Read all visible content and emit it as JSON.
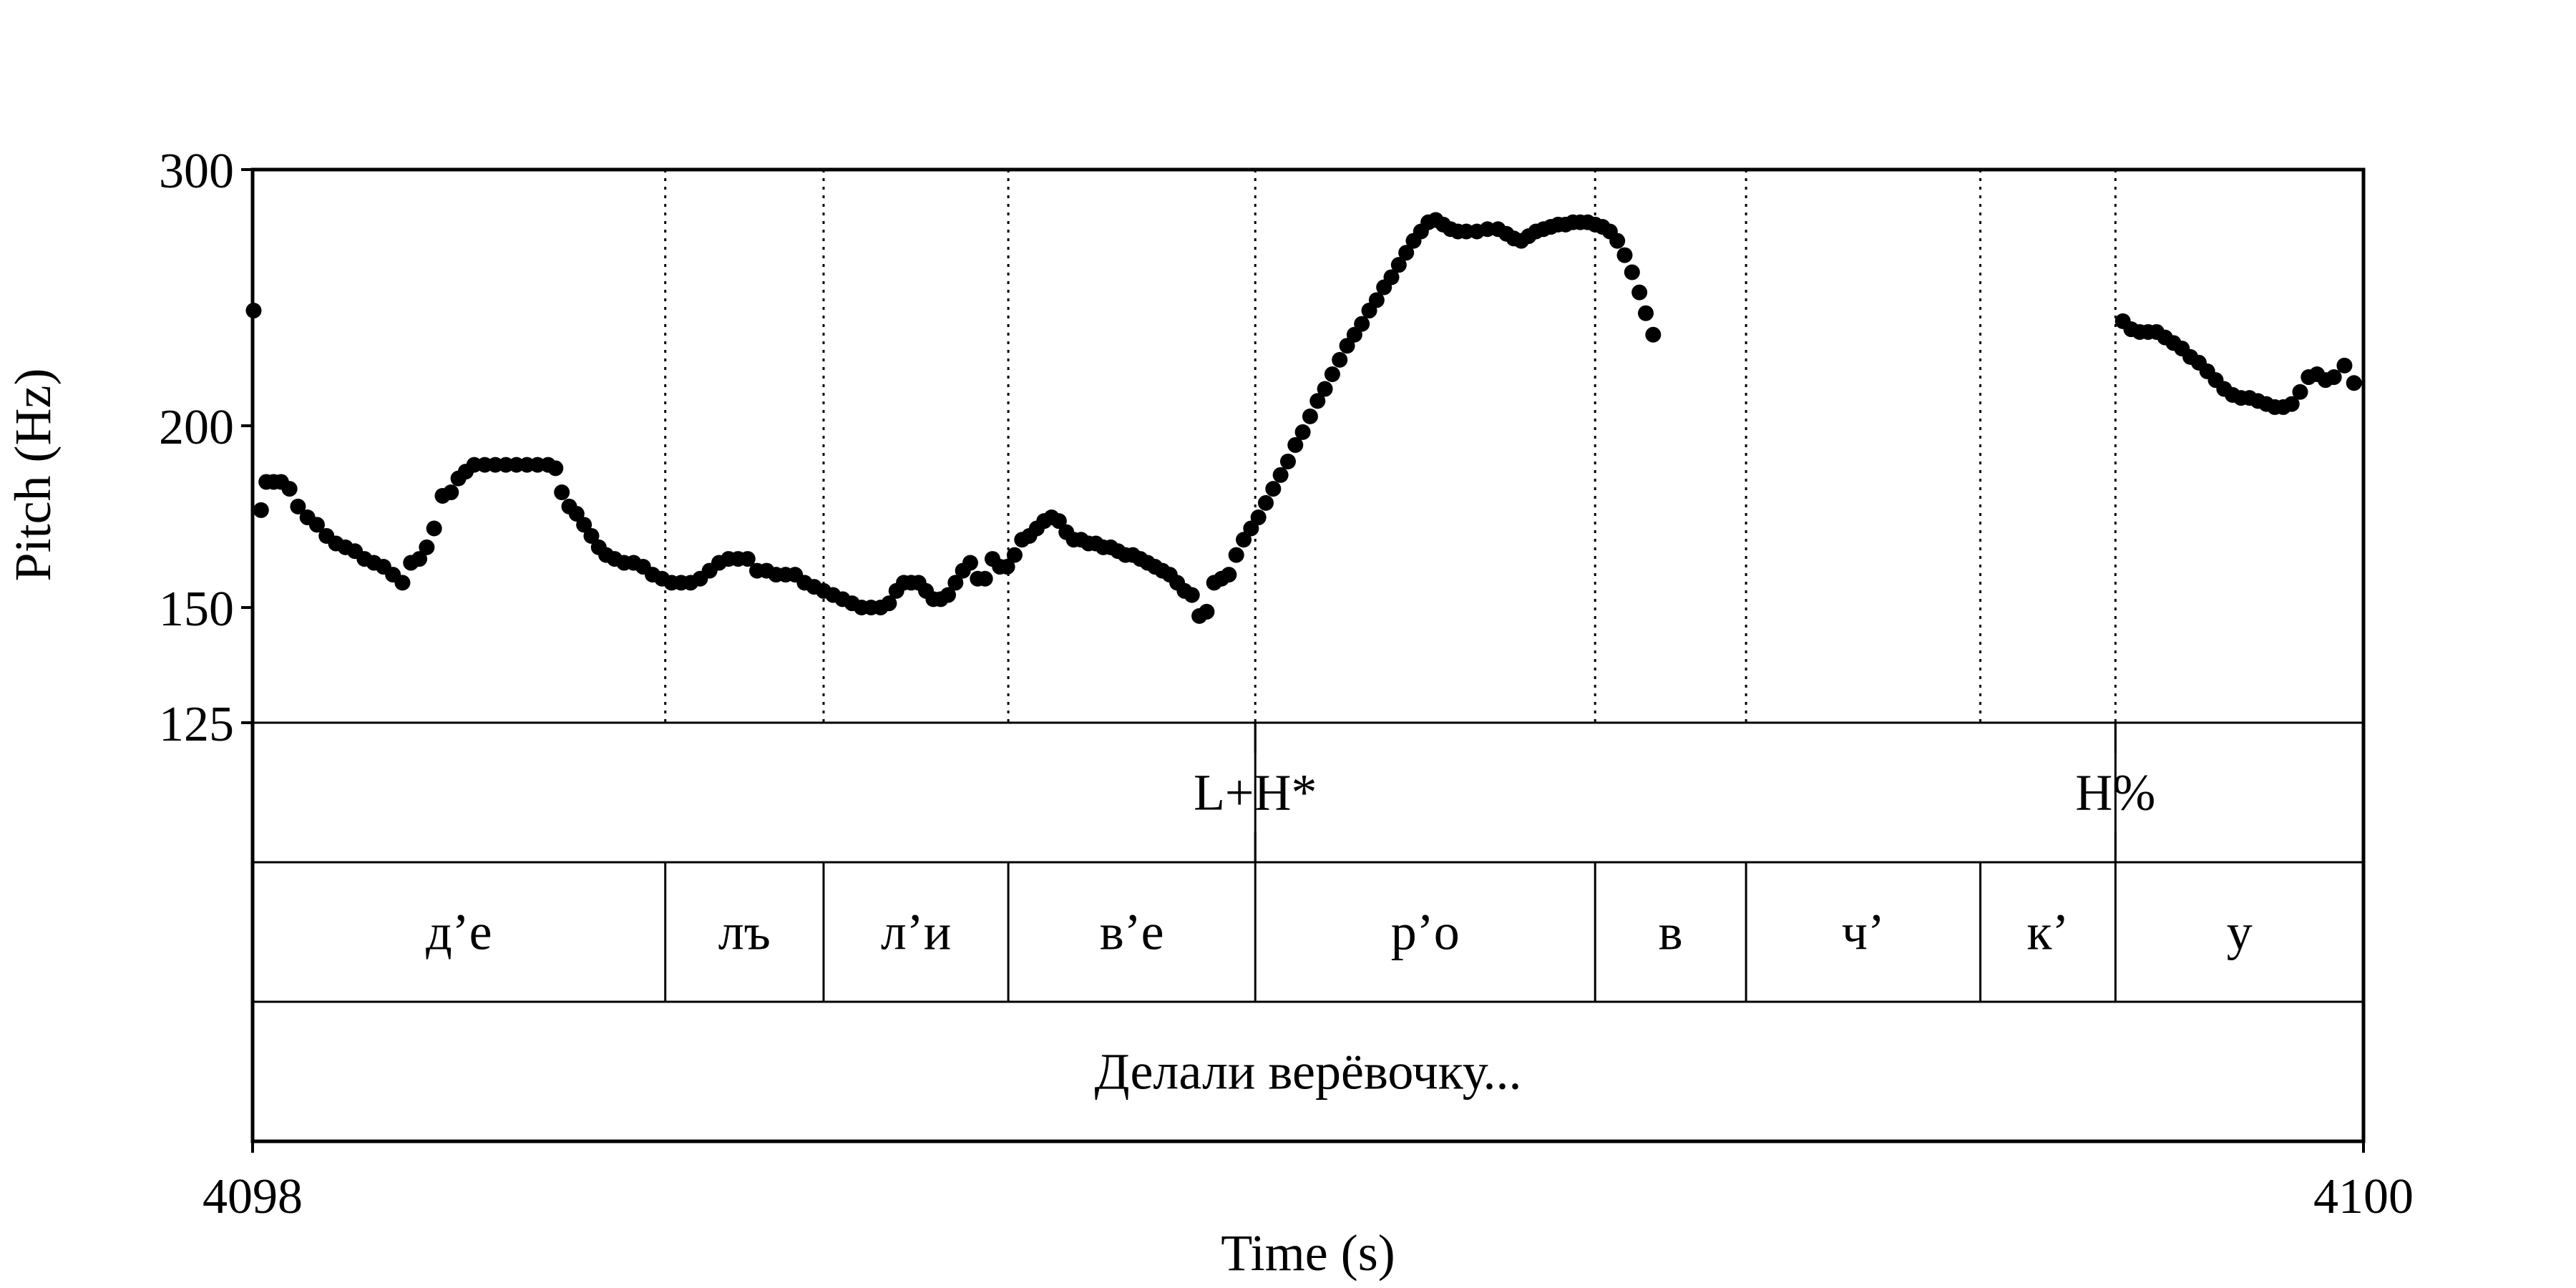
{
  "chart_data": {
    "type": "scatter",
    "xlabel": "Time (s)",
    "ylabel": "Pitch (Hz)",
    "xlim": [
      4098,
      4100
    ],
    "ylim": [
      125,
      300
    ],
    "yscale": "log",
    "x_ticks": [
      "4098",
      "4100"
    ],
    "y_ticks": [
      {
        "value": 300,
        "label": "300"
      },
      {
        "value": 200,
        "label": "200"
      },
      {
        "value": 150,
        "label": "150"
      },
      {
        "value": 125,
        "label": "125"
      }
    ],
    "grid": false,
    "legend": "none",
    "marker_color": "#000000",
    "pitch_points": [
      [
        4098.001,
        240.0
      ],
      [
        4098.008,
        175.0
      ],
      [
        4098.013,
        183.0
      ],
      [
        4098.02,
        183.0
      ],
      [
        4098.027,
        183.0
      ],
      [
        4098.035,
        181.0
      ],
      [
        4098.043,
        176.0
      ],
      [
        4098.052,
        173.0
      ],
      [
        4098.061,
        171.0
      ],
      [
        4098.07,
        168.0
      ],
      [
        4098.079,
        166.0
      ],
      [
        4098.088,
        165.0
      ],
      [
        4098.097,
        164.0
      ],
      [
        4098.106,
        162.0
      ],
      [
        4098.115,
        161.0
      ],
      [
        4098.124,
        160.0
      ],
      [
        4098.133,
        158.0
      ],
      [
        4098.142,
        156.0
      ],
      [
        4098.15,
        161.0
      ],
      [
        4098.158,
        162.0
      ],
      [
        4098.165,
        165.0
      ],
      [
        4098.172,
        170.0
      ],
      [
        4098.18,
        179.0
      ],
      [
        4098.188,
        180.0
      ],
      [
        4098.195,
        184.0
      ],
      [
        4098.202,
        186.0
      ],
      [
        4098.21,
        188.0
      ],
      [
        4098.22,
        188.0
      ],
      [
        4098.23,
        188.0
      ],
      [
        4098.24,
        188.0
      ],
      [
        4098.25,
        188.0
      ],
      [
        4098.26,
        188.0
      ],
      [
        4098.27,
        188.0
      ],
      [
        4098.28,
        188.0
      ],
      [
        4098.287,
        187.0
      ],
      [
        4098.293,
        180.0
      ],
      [
        4098.3,
        176.0
      ],
      [
        4098.307,
        174.0
      ],
      [
        4098.314,
        171.0
      ],
      [
        4098.321,
        168.0
      ],
      [
        4098.328,
        165.0
      ],
      [
        4098.335,
        163.0
      ],
      [
        4098.343,
        162.0
      ],
      [
        4098.352,
        161.0
      ],
      [
        4098.361,
        161.0
      ],
      [
        4098.37,
        160.0
      ],
      [
        4098.379,
        158.0
      ],
      [
        4098.388,
        157.0
      ],
      [
        4098.397,
        156.0
      ],
      [
        4098.406,
        156.0
      ],
      [
        4098.415,
        156.0
      ],
      [
        4098.424,
        157.0
      ],
      [
        4098.433,
        159.0
      ],
      [
        4098.442,
        161.0
      ],
      [
        4098.451,
        162.0
      ],
      [
        4098.46,
        162.0
      ],
      [
        4098.469,
        162.0
      ],
      [
        4098.478,
        159.0
      ],
      [
        4098.487,
        159.0
      ],
      [
        4098.496,
        158.0
      ],
      [
        4098.505,
        158.0
      ],
      [
        4098.514,
        158.0
      ],
      [
        4098.523,
        156.0
      ],
      [
        4098.532,
        155.0
      ],
      [
        4098.541,
        154.0
      ],
      [
        4098.55,
        153.0
      ],
      [
        4098.559,
        152.0
      ],
      [
        4098.568,
        151.0
      ],
      [
        4098.577,
        150.0
      ],
      [
        4098.586,
        150.0
      ],
      [
        4098.595,
        150.0
      ],
      [
        4098.603,
        151.0
      ],
      [
        4098.61,
        154.0
      ],
      [
        4098.617,
        156.0
      ],
      [
        4098.624,
        156.0
      ],
      [
        4098.631,
        156.0
      ],
      [
        4098.638,
        154.0
      ],
      [
        4098.645,
        152.0
      ],
      [
        4098.652,
        152.0
      ],
      [
        4098.659,
        153.0
      ],
      [
        4098.666,
        156.0
      ],
      [
        4098.673,
        159.0
      ],
      [
        4098.68,
        161.0
      ],
      [
        4098.687,
        157.0
      ],
      [
        4098.694,
        157.0
      ],
      [
        4098.701,
        162.0
      ],
      [
        4098.708,
        160.0
      ],
      [
        4098.715,
        160.0
      ],
      [
        4098.722,
        163.0
      ],
      [
        4098.729,
        167.0
      ],
      [
        4098.736,
        168.0
      ],
      [
        4098.743,
        170.0
      ],
      [
        4098.75,
        172.0
      ],
      [
        4098.757,
        173.0
      ],
      [
        4098.764,
        172.0
      ],
      [
        4098.771,
        169.0
      ],
      [
        4098.778,
        167.0
      ],
      [
        4098.785,
        167.0
      ],
      [
        4098.792,
        166.0
      ],
      [
        4098.799,
        166.0
      ],
      [
        4098.806,
        165.0
      ],
      [
        4098.813,
        165.0
      ],
      [
        4098.82,
        164.0
      ],
      [
        4098.827,
        163.0
      ],
      [
        4098.834,
        163.0
      ],
      [
        4098.841,
        162.0
      ],
      [
        4098.848,
        161.0
      ],
      [
        4098.855,
        160.0
      ],
      [
        4098.862,
        159.0
      ],
      [
        4098.869,
        158.0
      ],
      [
        4098.876,
        156.0
      ],
      [
        4098.883,
        154.0
      ],
      [
        4098.89,
        153.0
      ],
      [
        4098.897,
        148.0
      ],
      [
        4098.904,
        149.0
      ],
      [
        4098.911,
        156.0
      ],
      [
        4098.918,
        157.0
      ],
      [
        4098.925,
        158.0
      ],
      [
        4098.932,
        163.0
      ],
      [
        4098.939,
        167.0
      ],
      [
        4098.946,
        170.0
      ],
      [
        4098.953,
        173.0
      ],
      [
        4098.96,
        177.0
      ],
      [
        4098.967,
        181.0
      ],
      [
        4098.974,
        185.0
      ],
      [
        4098.981,
        189.0
      ],
      [
        4098.988,
        194.0
      ],
      [
        4098.995,
        198.0
      ],
      [
        4099.002,
        203.0
      ],
      [
        4099.009,
        208.0
      ],
      [
        4099.016,
        212.0
      ],
      [
        4099.023,
        217.0
      ],
      [
        4099.03,
        222.0
      ],
      [
        4099.037,
        227.0
      ],
      [
        4099.044,
        231.0
      ],
      [
        4099.051,
        235.0
      ],
      [
        4099.058,
        240.0
      ],
      [
        4099.065,
        244.0
      ],
      [
        4099.072,
        249.0
      ],
      [
        4099.079,
        253.0
      ],
      [
        4099.086,
        258.0
      ],
      [
        4099.093,
        263.0
      ],
      [
        4099.1,
        268.0
      ],
      [
        4099.107,
        272.0
      ],
      [
        4099.114,
        276.0
      ],
      [
        4099.121,
        277.0
      ],
      [
        4099.128,
        275.0
      ],
      [
        4099.135,
        273.0
      ],
      [
        4099.142,
        272.0
      ],
      [
        4099.15,
        272.0
      ],
      [
        4099.16,
        272.0
      ],
      [
        4099.17,
        273.0
      ],
      [
        4099.18,
        273.0
      ],
      [
        4099.188,
        271.0
      ],
      [
        4099.195,
        269.0
      ],
      [
        4099.202,
        268.0
      ],
      [
        4099.209,
        270.0
      ],
      [
        4099.216,
        272.0
      ],
      [
        4099.223,
        273.0
      ],
      [
        4099.23,
        274.0
      ],
      [
        4099.237,
        275.0
      ],
      [
        4099.244,
        275.0
      ],
      [
        4099.251,
        276.0
      ],
      [
        4099.258,
        276.0
      ],
      [
        4099.265,
        276.0
      ],
      [
        4099.272,
        275.0
      ],
      [
        4099.279,
        274.0
      ],
      [
        4099.286,
        272.0
      ],
      [
        4099.293,
        268.0
      ],
      [
        4099.3,
        262.0
      ],
      [
        4099.307,
        255.0
      ],
      [
        4099.314,
        247.0
      ],
      [
        4099.32,
        239.0
      ],
      [
        4099.327,
        231.0
      ],
      [
        4099.772,
        236.0
      ],
      [
        4099.78,
        233.0
      ],
      [
        4099.788,
        232.0
      ],
      [
        4099.796,
        232.0
      ],
      [
        4099.804,
        232.0
      ],
      [
        4099.812,
        230.0
      ],
      [
        4099.82,
        228.0
      ],
      [
        4099.828,
        226.0
      ],
      [
        4099.836,
        223.0
      ],
      [
        4099.844,
        221.0
      ],
      [
        4099.852,
        218.0
      ],
      [
        4099.86,
        215.0
      ],
      [
        4099.868,
        212.0
      ],
      [
        4099.876,
        210.0
      ],
      [
        4099.884,
        209.0
      ],
      [
        4099.892,
        209.0
      ],
      [
        4099.9,
        208.0
      ],
      [
        4099.908,
        207.0
      ],
      [
        4099.916,
        206.0
      ],
      [
        4099.924,
        206.0
      ],
      [
        4099.932,
        207.0
      ],
      [
        4099.94,
        211.0
      ],
      [
        4099.948,
        216.0
      ],
      [
        4099.956,
        217.0
      ],
      [
        4099.964,
        215.0
      ],
      [
        4099.972,
        216.0
      ],
      [
        4099.982,
        220.0
      ],
      [
        4099.991,
        214.0
      ]
    ],
    "boundaries": [
      4098.391,
      4098.541,
      4098.716,
      4098.95,
      4099.272,
      4099.415,
      4099.637,
      4099.765
    ],
    "tiers": [
      {
        "name": "tones",
        "intervals": [
          {
            "start": 4098.0,
            "end": 4098.95,
            "label": ""
          },
          {
            "start": 4098.95,
            "end": 4099.765,
            "label": ""
          },
          {
            "start": 4099.765,
            "end": 4100.0,
            "label": ""
          }
        ],
        "points": [
          {
            "time": 4098.95,
            "label": "L+H*"
          },
          {
            "time": 4099.765,
            "label": "H%"
          }
        ]
      },
      {
        "name": "syllables",
        "intervals": [
          {
            "start": 4098.0,
            "end": 4098.391,
            "label": "д’е"
          },
          {
            "start": 4098.391,
            "end": 4098.541,
            "label": "лъ"
          },
          {
            "start": 4098.541,
            "end": 4098.716,
            "label": "л’и"
          },
          {
            "start": 4098.716,
            "end": 4098.95,
            "label": "в’е"
          },
          {
            "start": 4098.95,
            "end": 4099.272,
            "label": "р’о"
          },
          {
            "start": 4099.272,
            "end": 4099.415,
            "label": "в"
          },
          {
            "start": 4099.415,
            "end": 4099.637,
            "label": "ч’"
          },
          {
            "start": 4099.637,
            "end": 4099.765,
            "label": "к’"
          },
          {
            "start": 4099.765,
            "end": 4100.0,
            "label": "у"
          }
        ]
      },
      {
        "name": "words",
        "intervals": [
          {
            "start": 4098.0,
            "end": 4100.0,
            "label": "Делали верёвочку..."
          }
        ]
      }
    ]
  }
}
